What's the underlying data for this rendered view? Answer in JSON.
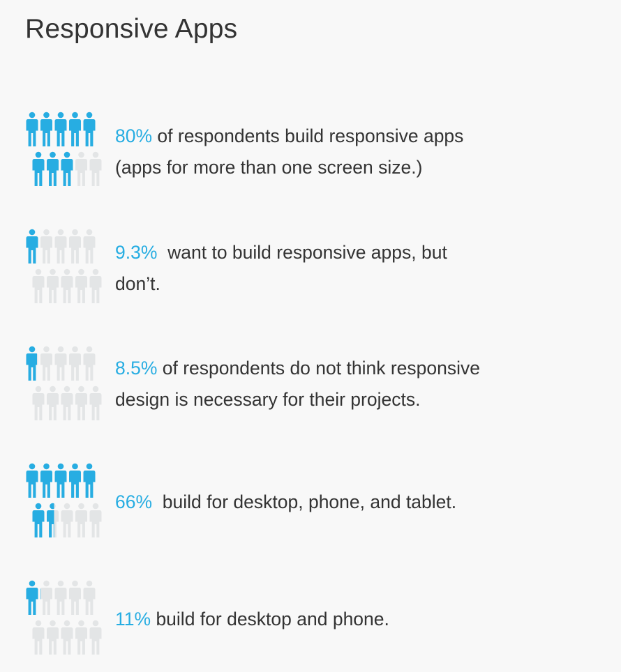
{
  "title": "Responsive Apps",
  "colors": {
    "accent": "#27ade2",
    "inactive": "#e3e5e6",
    "text": "#333333",
    "background": "#f8f8f8"
  },
  "stats": [
    {
      "percent": "80%",
      "text": " of respondents build responsive apps",
      "text_line2": "(apps for more than one screen size.)",
      "fill_fraction": 0.8
    },
    {
      "percent": "9.3%",
      "text": "  want to build responsive apps, but",
      "text_line2": "don’t.",
      "fill_fraction": 0.093
    },
    {
      "percent": "8.5%",
      "text": " of respondents do not think responsive",
      "text_line2": "design is necessary for their projects.",
      "fill_fraction": 0.085
    },
    {
      "percent": "66%",
      "text": "  build for desktop, phone, and tablet.",
      "text_line2": "",
      "fill_fraction": 0.66
    },
    {
      "percent": "11%",
      "text": " build for desktop and phone.",
      "text_line2": "",
      "fill_fraction": 0.11
    }
  ]
}
